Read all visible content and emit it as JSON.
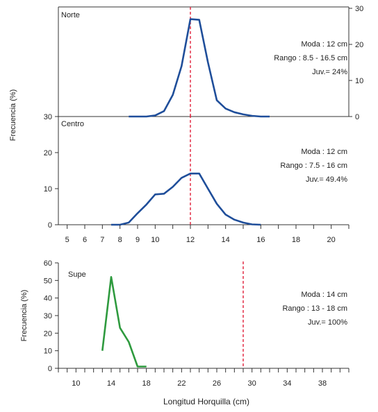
{
  "chart_data": [
    {
      "type": "line",
      "title": "Norte",
      "ylabel": "Frecuencia (%)",
      "ylim": [
        0,
        30
      ],
      "xlim": [
        4.5,
        21
      ],
      "yticks": [
        0,
        10,
        20,
        30
      ],
      "y_axis_side": "right",
      "reference_line_x": 12,
      "annotations": [
        "Moda : 12 cm",
        "Rango : 8.5 - 16.5 cm",
        "Juv.= 24%"
      ],
      "colors": {
        "series": "#1f4e9a",
        "reference": "#e0203a"
      },
      "series": [
        {
          "x": [
            8.5,
            9,
            9.5,
            10,
            10.5,
            11,
            11.5,
            12,
            12.5,
            13,
            13.5,
            14,
            14.5,
            15,
            15.5,
            16,
            16.5
          ],
          "values": [
            0,
            0,
            0,
            0.3,
            1.5,
            6,
            14,
            27,
            26.8,
            15,
            4.5,
            2.2,
            1.2,
            0.6,
            0.2,
            0,
            0
          ]
        }
      ]
    },
    {
      "type": "line",
      "title": "Centro",
      "ylabel": "Frecuencia (%)",
      "ylim": [
        0,
        30
      ],
      "xlim": [
        4.5,
        21
      ],
      "yticks": [
        0,
        10,
        20,
        30
      ],
      "y_axis_side": "left",
      "xticks": [
        5,
        6,
        7,
        8,
        9,
        10,
        12,
        14,
        16,
        18,
        20
      ],
      "xtick_positions": [
        5,
        6,
        7,
        8,
        9,
        10,
        12,
        14,
        16,
        18,
        20
      ],
      "reference_line_x": 12,
      "annotations": [
        "Moda : 12 cm",
        "Rango : 7.5 - 16 cm",
        "Juv.= 49.4%"
      ],
      "colors": {
        "series": "#1f4e9a",
        "reference": "#e0203a"
      },
      "series": [
        {
          "x": [
            7.5,
            8,
            8.5,
            9,
            9.5,
            10,
            10.5,
            11,
            11.5,
            12,
            12.5,
            13,
            13.5,
            14,
            14.5,
            15,
            15.5,
            16
          ],
          "values": [
            0,
            0,
            0.6,
            3.2,
            5.6,
            8.4,
            8.6,
            10.5,
            13,
            14.2,
            14.2,
            10,
            5.8,
            2.8,
            1.4,
            0.6,
            0.1,
            0
          ]
        }
      ]
    },
    {
      "type": "line",
      "title": "Supe",
      "ylabel": "Frecuencia (%)",
      "xlabel": "Longitud Horquilla (cm)",
      "ylim": [
        0,
        60
      ],
      "xlim": [
        8,
        41
      ],
      "yticks": [
        0,
        10,
        20,
        30,
        40,
        50,
        60
      ],
      "xticks": [
        10,
        14,
        18,
        22,
        26,
        30,
        34,
        38
      ],
      "xtick_positions": [
        10,
        14,
        18,
        22,
        26,
        30,
        34,
        38
      ],
      "reference_line_x": 29,
      "annotations": [
        "Moda : 14 cm",
        "Rango : 13 - 18 cm",
        "Juv.= 100%"
      ],
      "colors": {
        "series": "#2e9a3e",
        "reference": "#e0203a"
      },
      "series": [
        {
          "x": [
            13,
            14,
            15,
            16,
            17,
            18
          ],
          "values": [
            10,
            52,
            23,
            15,
            1,
            1
          ]
        }
      ]
    }
  ]
}
